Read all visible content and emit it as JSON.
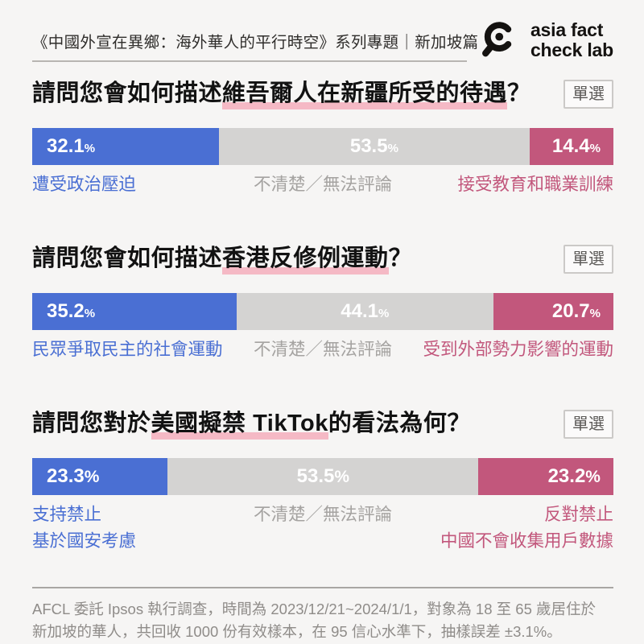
{
  "header": {
    "title": "《中國外宣在異鄉：海外華人的平行時空》系列專題｜新加坡篇",
    "logo": {
      "line1": "asia fact",
      "line2": "check lab"
    }
  },
  "colors": {
    "blue": "#4a6fd3",
    "gray": "#d4d3d2",
    "rose": "#c2577c",
    "highlight_underline": "#f5b9c5"
  },
  "survey": {
    "questions": [
      {
        "badge": "單選",
        "title_prefix": "請問您會如何描述",
        "title_highlight": "維吾爾人在新疆所受的待遇",
        "title_suffix": "？",
        "segments": [
          {
            "value": "32.1",
            "unit": "%",
            "width": 32.1,
            "label_line1": "遭受政治壓迫"
          },
          {
            "value": "53.5",
            "unit": "%",
            "width": 53.5,
            "label_line1": "不清楚／無法評論"
          },
          {
            "value": "14.4",
            "unit": "%",
            "width": 14.4,
            "label_line1": "接受教育和職業訓練"
          }
        ]
      },
      {
        "badge": "單選",
        "title_prefix": "請問您會如何描述",
        "title_highlight": "香港反修例運動",
        "title_suffix": "？",
        "segments": [
          {
            "value": "35.2",
            "unit": "%",
            "width": 35.2,
            "label_line1": "民眾爭取民主的社會運動"
          },
          {
            "value": "44.1",
            "unit": "%",
            "width": 44.1,
            "label_line1": "不清楚／無法評論"
          },
          {
            "value": "20.7",
            "unit": "%",
            "width": 20.7,
            "label_line1": "受到外部勢力影響的運動"
          }
        ]
      },
      {
        "badge": "單選",
        "title_prefix": "請問您對於",
        "title_highlight": "美國擬禁 TikTok",
        "title_suffix": "的看法為何？",
        "segments": [
          {
            "value": "23.3",
            "unit": "%",
            "width": 23.3,
            "label_line1": "支持禁止",
            "label_line2": "基於國安考慮"
          },
          {
            "value": "53.5",
            "unit": "%",
            "width": 53.5,
            "label_line1": "不清楚／無法評論"
          },
          {
            "value": "23.2",
            "unit": "%",
            "width": 23.2,
            "label_line1": "反對禁止",
            "label_line2": "中國不會收集用戶數據"
          }
        ]
      }
    ]
  },
  "footer": {
    "line1": "AFCL 委託 Ipsos 執行調查，時間為 2023/12/21~2024/1/1，對象為 18 至 65 歲居住於",
    "line2": "新加坡的華人，共回收 1000 份有效樣本，在 95 信心水準下，抽樣誤差 ±3.1%。"
  },
  "chart_data": [
    {
      "type": "bar",
      "subtype": "stacked-horizontal",
      "title": "請問您會如何描述維吾爾人在新疆所受的待遇？",
      "categories": [
        "遭受政治壓迫",
        "不清楚／無法評論",
        "接受教育和職業訓練"
      ],
      "values": [
        32.1,
        53.5,
        14.4
      ],
      "unit": "%",
      "colors": [
        "#4a6fd3",
        "#d4d3d2",
        "#c2577c"
      ],
      "xlim": [
        0,
        100
      ],
      "grid": false,
      "legend": "labels below segments"
    },
    {
      "type": "bar",
      "subtype": "stacked-horizontal",
      "title": "請問您會如何描述香港反修例運動？",
      "categories": [
        "民眾爭取民主的社會運動",
        "不清楚／無法評論",
        "受到外部勢力影響的運動"
      ],
      "values": [
        35.2,
        44.1,
        20.7
      ],
      "unit": "%",
      "colors": [
        "#4a6fd3",
        "#d4d3d2",
        "#c2577c"
      ],
      "xlim": [
        0,
        100
      ],
      "grid": false,
      "legend": "labels below segments"
    },
    {
      "type": "bar",
      "subtype": "stacked-horizontal",
      "title": "請問您對於美國擬禁 TikTok 的看法為何？",
      "categories": [
        "支持禁止 基於國安考慮",
        "不清楚／無法評論",
        "反對禁止 中國不會收集用戶數據"
      ],
      "values": [
        23.3,
        53.5,
        23.2
      ],
      "unit": "%",
      "colors": [
        "#4a6fd3",
        "#d4d3d2",
        "#c2577c"
      ],
      "xlim": [
        0,
        100
      ],
      "grid": false,
      "legend": "labels below segments"
    }
  ]
}
